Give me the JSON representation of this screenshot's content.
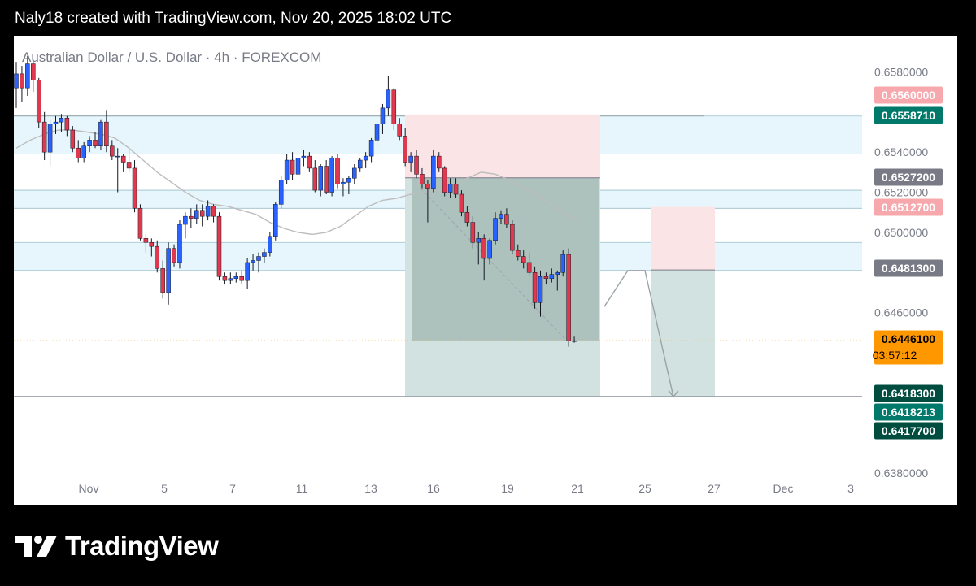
{
  "header": {
    "title": "Naly18 created with TradingView.com, Nov 20, 2025 18:02 UTC"
  },
  "footer": {
    "brand": "TradingView",
    "brand_icon": "tradingview-logo-icon"
  },
  "colors": {
    "bull": "#2962ff",
    "bear": "#e0394f",
    "zone": "#e6f6fc",
    "stop_zone": "#fbe4e6",
    "target_zone": "#d2e2e0",
    "ma": "#bdbdbd",
    "last_price": "#ff9800",
    "label_red": "#f7a8ac",
    "label_gray": "#787b86",
    "label_green": "#00796b",
    "label_dark": "#004d40"
  },
  "chart_data": {
    "type": "candlestick",
    "title": "Australian Dollar / U.S. Dollar · 4h · FOREXCOM",
    "ylim": [
      0.6376,
      0.6598
    ],
    "y_ticks": [
      "0.6580000",
      "0.6540000",
      "0.6520000",
      "0.6500000",
      "0.6460000",
      "0.6380000"
    ],
    "x_ticks": [
      "Nov",
      "5",
      "7",
      "11",
      "13",
      "16",
      "19",
      "21",
      "25",
      "27",
      "Dec",
      "3"
    ],
    "candles": [
      [
        0.6572,
        0.6585,
        0.6562,
        0.6579
      ],
      [
        0.6579,
        0.6583,
        0.6565,
        0.6572
      ],
      [
        0.6572,
        0.6588,
        0.6568,
        0.6584
      ],
      [
        0.6584,
        0.6586,
        0.657,
        0.6576
      ],
      [
        0.6576,
        0.6577,
        0.6552,
        0.6555
      ],
      [
        0.6555,
        0.656,
        0.6536,
        0.654
      ],
      [
        0.654,
        0.6556,
        0.6533,
        0.6554
      ],
      [
        0.6554,
        0.6558,
        0.6549,
        0.6555
      ],
      [
        0.6555,
        0.6559,
        0.655,
        0.6557
      ],
      [
        0.6557,
        0.6558,
        0.6548,
        0.6551
      ],
      [
        0.6551,
        0.6553,
        0.654,
        0.6542
      ],
      [
        0.6542,
        0.6546,
        0.6535,
        0.6537
      ],
      [
        0.6537,
        0.6545,
        0.6535,
        0.6543
      ],
      [
        0.6543,
        0.6548,
        0.654,
        0.6546
      ],
      [
        0.6546,
        0.655,
        0.6542,
        0.6543
      ],
      [
        0.6543,
        0.6556,
        0.6541,
        0.6555
      ],
      [
        0.6555,
        0.6561,
        0.654,
        0.6543
      ],
      [
        0.6543,
        0.6546,
        0.6536,
        0.6538
      ],
      [
        0.6538,
        0.6542,
        0.652,
        0.6538
      ],
      [
        0.6538,
        0.6539,
        0.653,
        0.6535
      ],
      [
        0.6535,
        0.6541,
        0.653,
        0.6532
      ],
      [
        0.6532,
        0.6536,
        0.651,
        0.6512
      ],
      [
        0.6512,
        0.6514,
        0.6496,
        0.6497
      ],
      [
        0.6497,
        0.6499,
        0.649,
        0.6495
      ],
      [
        0.6495,
        0.6497,
        0.6488,
        0.6493
      ],
      [
        0.6493,
        0.6496,
        0.648,
        0.6482
      ],
      [
        0.6482,
        0.6486,
        0.6467,
        0.647
      ],
      [
        0.647,
        0.6495,
        0.6464,
        0.6492
      ],
      [
        0.6492,
        0.6494,
        0.6483,
        0.6485
      ],
      [
        0.6485,
        0.6506,
        0.6482,
        0.6504
      ],
      [
        0.6504,
        0.651,
        0.6497,
        0.6508
      ],
      [
        0.6508,
        0.6512,
        0.6502,
        0.6507
      ],
      [
        0.6507,
        0.6514,
        0.6504,
        0.6511
      ],
      [
        0.6511,
        0.6514,
        0.6503,
        0.6508
      ],
      [
        0.6508,
        0.6516,
        0.6506,
        0.6513
      ],
      [
        0.6513,
        0.6514,
        0.6505,
        0.6508
      ],
      [
        0.6508,
        0.651,
        0.6476,
        0.6478
      ],
      [
        0.6478,
        0.648,
        0.6474,
        0.6476
      ],
      [
        0.6476,
        0.648,
        0.6474,
        0.6477
      ],
      [
        0.6477,
        0.648,
        0.6475,
        0.6478
      ],
      [
        0.6478,
        0.6481,
        0.6474,
        0.6476
      ],
      [
        0.6476,
        0.6487,
        0.6472,
        0.6485
      ],
      [
        0.6485,
        0.6489,
        0.6481,
        0.6486
      ],
      [
        0.6486,
        0.649,
        0.648,
        0.6488
      ],
      [
        0.6488,
        0.6492,
        0.6485,
        0.649
      ],
      [
        0.649,
        0.65,
        0.6488,
        0.6498
      ],
      [
        0.6498,
        0.6515,
        0.6496,
        0.6514
      ],
      [
        0.6514,
        0.6528,
        0.6512,
        0.6526
      ],
      [
        0.6526,
        0.6539,
        0.6524,
        0.6536
      ],
      [
        0.6536,
        0.654,
        0.6526,
        0.6529
      ],
      [
        0.6529,
        0.6539,
        0.6527,
        0.6537
      ],
      [
        0.6537,
        0.6541,
        0.6533,
        0.6538
      ],
      [
        0.6538,
        0.654,
        0.653,
        0.6532
      ],
      [
        0.6532,
        0.6536,
        0.652,
        0.6521
      ],
      [
        0.6521,
        0.6534,
        0.6518,
        0.6533
      ],
      [
        0.6533,
        0.6536,
        0.6519,
        0.652
      ],
      [
        0.652,
        0.6538,
        0.6518,
        0.6537
      ],
      [
        0.6537,
        0.6539,
        0.6522,
        0.6524
      ],
      [
        0.6524,
        0.6527,
        0.6518,
        0.6525
      ],
      [
        0.6525,
        0.6528,
        0.6519,
        0.6527
      ],
      [
        0.6527,
        0.6534,
        0.6524,
        0.6532
      ],
      [
        0.6532,
        0.6537,
        0.653,
        0.6536
      ],
      [
        0.6536,
        0.654,
        0.6532,
        0.6538
      ],
      [
        0.6538,
        0.6547,
        0.6535,
        0.6546
      ],
      [
        0.6546,
        0.6556,
        0.6542,
        0.6554
      ],
      [
        0.6554,
        0.6564,
        0.6549,
        0.6562
      ],
      [
        0.6562,
        0.6578,
        0.6558,
        0.6571
      ],
      [
        0.6571,
        0.6572,
        0.6551,
        0.6554
      ],
      [
        0.6554,
        0.6557,
        0.6546,
        0.6548
      ],
      [
        0.6548,
        0.6552,
        0.6533,
        0.6535
      ],
      [
        0.6535,
        0.654,
        0.653,
        0.6538
      ],
      [
        0.6538,
        0.6541,
        0.6527,
        0.6529
      ],
      [
        0.6529,
        0.6532,
        0.6522,
        0.6524
      ],
      [
        0.6524,
        0.6526,
        0.6505,
        0.6522
      ],
      [
        0.6522,
        0.6541,
        0.652,
        0.6538
      ],
      [
        0.6538,
        0.654,
        0.653,
        0.6532
      ],
      [
        0.6532,
        0.6533,
        0.6518,
        0.652
      ],
      [
        0.652,
        0.6527,
        0.6517,
        0.6524
      ],
      [
        0.6524,
        0.6527,
        0.6517,
        0.6519
      ],
      [
        0.6519,
        0.6521,
        0.6508,
        0.651
      ],
      [
        0.651,
        0.6513,
        0.6503,
        0.6505
      ],
      [
        0.6505,
        0.6508,
        0.6492,
        0.6495
      ],
      [
        0.6495,
        0.65,
        0.6484,
        0.6497
      ],
      [
        0.6497,
        0.6499,
        0.6476,
        0.6487
      ],
      [
        0.6487,
        0.6497,
        0.6484,
        0.6496
      ],
      [
        0.6496,
        0.651,
        0.6494,
        0.6507
      ],
      [
        0.6507,
        0.6511,
        0.6504,
        0.6509
      ],
      [
        0.6509,
        0.6512,
        0.6502,
        0.6504
      ],
      [
        0.6504,
        0.6506,
        0.6489,
        0.6491
      ],
      [
        0.6491,
        0.6494,
        0.6486,
        0.6488
      ],
      [
        0.6488,
        0.6491,
        0.6482,
        0.6485
      ],
      [
        0.6485,
        0.649,
        0.6478,
        0.648
      ],
      [
        0.648,
        0.6483,
        0.6462,
        0.6465
      ],
      [
        0.6465,
        0.6481,
        0.6458,
        0.6478
      ],
      [
        0.6478,
        0.648,
        0.6474,
        0.6477
      ],
      [
        0.6477,
        0.6482,
        0.6475,
        0.6479
      ],
      [
        0.6479,
        0.6481,
        0.6471,
        0.648
      ],
      [
        0.648,
        0.6491,
        0.6478,
        0.6489
      ],
      [
        0.6489,
        0.6492,
        0.6443,
        0.6446
      ],
      [
        0.6446,
        0.6448,
        0.6445,
        0.6446
      ]
    ],
    "moving_average": [
      [
        0.6542,
        0.6546,
        0.6549,
        0.6551,
        0.6551,
        0.655,
        0.6549,
        0.6547,
        0.6542,
        0.6536,
        0.653,
        0.6525,
        0.652,
        0.6516,
        0.6514,
        0.6513,
        0.6511,
        0.6509,
        0.6505,
        0.6502,
        0.65,
        0.6499,
        0.65,
        0.6503,
        0.6508,
        0.6513,
        0.6516,
        0.6517,
        0.6519,
        0.652,
        0.6521,
        0.6524,
        0.6527,
        0.653,
        0.6529,
        0.6526,
        0.6522,
        0.6518,
        0.6514,
        0.6509,
        0.6505
      ]
    ],
    "horizontal_zones": [
      {
        "from": 0.6539,
        "to": 0.6558
      },
      {
        "from": 0.6512,
        "to": 0.6521
      },
      {
        "from": 0.6481,
        "to": 0.6495
      }
    ],
    "short_position_1": {
      "entry": 0.65272,
      "stop": 0.65588,
      "target": 0.64183
    },
    "short_position_2": {
      "entry": 0.64813,
      "stop": 0.65127,
      "target": 0.64177
    },
    "projection_path": [
      [
        0.6463
      ],
      [
        0.6481
      ],
      [
        0.6481
      ],
      [
        0.6418
      ]
    ],
    "price_labels": [
      {
        "value": 0.656,
        "text": "0.6560000",
        "style": "red"
      },
      {
        "value": 0.655871,
        "text": "0.6558710",
        "style": "green"
      },
      {
        "value": 0.65272,
        "text": "0.6527200",
        "style": "gray"
      },
      {
        "value": 0.65127,
        "text": "0.6512700",
        "style": "red"
      },
      {
        "value": 0.64813,
        "text": "0.6481300",
        "style": "gray"
      },
      {
        "value": 0.64461,
        "text": "0.6446100",
        "sub": "03:57:12",
        "style": "last"
      },
      {
        "value": 0.64183,
        "text": "0.6418300",
        "style": "dark"
      },
      {
        "value": 0.6418213,
        "text": "0.6418213",
        "style": "green"
      },
      {
        "value": 0.64177,
        "text": "0.6417700",
        "style": "dark"
      }
    ]
  }
}
